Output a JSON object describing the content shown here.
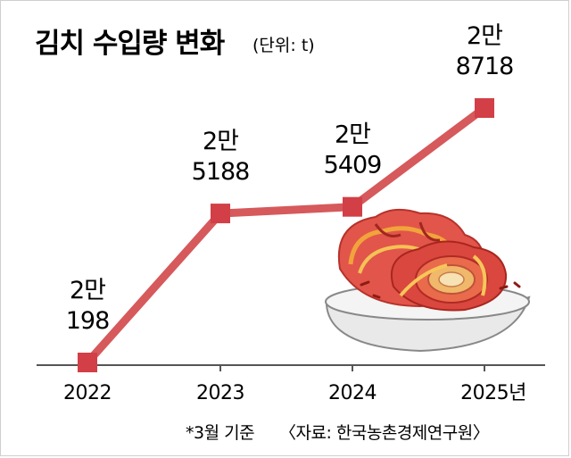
{
  "chart_data": {
    "type": "line",
    "title": "김치 수입량 변화",
    "unit_label": "(단위: t)",
    "categories": [
      "2022",
      "2023",
      "2024",
      "2025년"
    ],
    "values": [
      20198,
      25188,
      25409,
      28718
    ],
    "data_labels": [
      [
        "2만",
        "198"
      ],
      [
        "2만",
        "5188"
      ],
      [
        "2만",
        "5409"
      ],
      [
        "2만",
        "8718"
      ]
    ],
    "line_color": "#d6595c",
    "marker_color": "#d23f46",
    "footnote": "*3월 기준",
    "source": "〈자료: 한국농촌경제연구원〉"
  }
}
